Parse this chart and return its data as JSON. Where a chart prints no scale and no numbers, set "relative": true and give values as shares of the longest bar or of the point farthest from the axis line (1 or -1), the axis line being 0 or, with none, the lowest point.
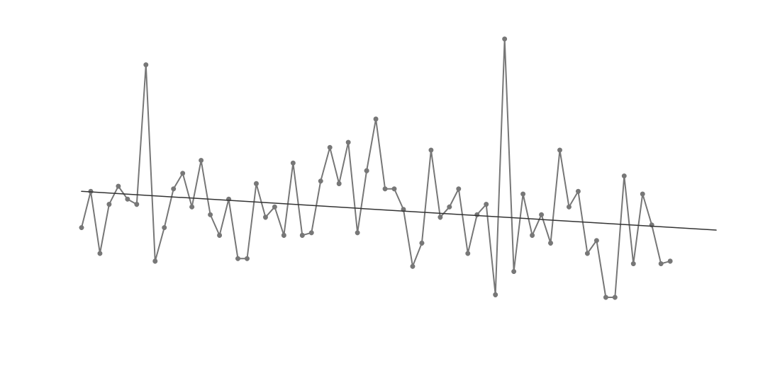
{
  "chart_data": {
    "type": "line",
    "relative": true,
    "grid": false,
    "marker": "circle",
    "categories": [
      null,
      null,
      null,
      null,
      null,
      null,
      null,
      null,
      null,
      null,
      null,
      null,
      null,
      null,
      null,
      null,
      null,
      null,
      null,
      null,
      null,
      null,
      null,
      null,
      null,
      null,
      null,
      null,
      null,
      null,
      null,
      null,
      null,
      null,
      null,
      null,
      null,
      null,
      null,
      null,
      null,
      null,
      null,
      null,
      null,
      null,
      null,
      null,
      null,
      null,
      null,
      null,
      null,
      null,
      null,
      null,
      null,
      null,
      null,
      null,
      null,
      null,
      null,
      null,
      null,
      null,
      null,
      null,
      null,
      null
    ],
    "series": [
      {
        "color": "#777777",
        "values": [
          0.27,
          0.41,
          0.17,
          0.36,
          0.43,
          0.38,
          0.36,
          0.9,
          0.14,
          0.27,
          0.42,
          0.48,
          0.35,
          0.53,
          0.32,
          0.24,
          0.38,
          0.15,
          0.15,
          0.44,
          0.31,
          0.35,
          0.24,
          0.52,
          0.24,
          0.25,
          0.45,
          0.58,
          0.44,
          0.6,
          0.25,
          0.49,
          0.69,
          0.42,
          0.42,
          0.34,
          0.12,
          0.21,
          0.57,
          0.31,
          0.35,
          0.42,
          0.17,
          0.32,
          0.36,
          0.01,
          1,
          0.1,
          0.4,
          0.24,
          0.32,
          0.21,
          0.57,
          0.35,
          0.41,
          0.17,
          0.22,
          0,
          0,
          0.47,
          0.13,
          0.4,
          0.28,
          0.13,
          0.14,
          null,
          null,
          null,
          null,
          null
        ]
      },
      {
        "type": "line",
        "color": "#333333",
        "marker": "none",
        "values": [
          0.41,
          null,
          null,
          null,
          null,
          null,
          null,
          null,
          null,
          null,
          null,
          null,
          null,
          null,
          null,
          null,
          null,
          null,
          null,
          null,
          null,
          null,
          null,
          null,
          null,
          null,
          null,
          null,
          null,
          null,
          null,
          null,
          null,
          null,
          null,
          null,
          null,
          null,
          null,
          null,
          null,
          null,
          null,
          null,
          null,
          null,
          null,
          null,
          null,
          null,
          null,
          null,
          null,
          null,
          null,
          null,
          null,
          null,
          null,
          null,
          null,
          null,
          null,
          null,
          null,
          null,
          null,
          null,
          null,
          0.26
        ]
      }
    ]
  }
}
